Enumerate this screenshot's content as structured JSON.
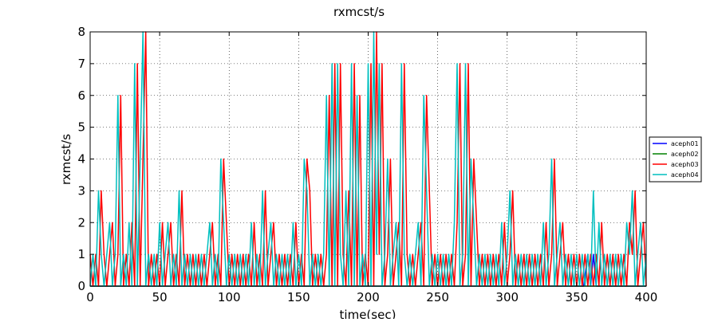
{
  "chart_data": {
    "type": "line",
    "title": "rxmcst/s",
    "xlabel": "time(sec)",
    "ylabel": "rxmcst/s",
    "xlim": [
      0,
      400
    ],
    "ylim": [
      0,
      8
    ],
    "xticks": [
      "0",
      "50",
      "100",
      "150",
      "200",
      "250",
      "300",
      "350",
      "400"
    ],
    "yticks": [
      "0",
      "1",
      "2",
      "3",
      "4",
      "5",
      "6",
      "7",
      "8"
    ],
    "grid": true,
    "legend_position": "right",
    "series": [
      {
        "name": "aceph01",
        "color": "#0000ff",
        "x": [
          0,
          10,
          20,
          30,
          40,
          50,
          60,
          70,
          80,
          90,
          100,
          110,
          120,
          130,
          140,
          150,
          160,
          170,
          180,
          190,
          200,
          210,
          220,
          230,
          240,
          250,
          260,
          270,
          280,
          290,
          300,
          310,
          320,
          330,
          340,
          350,
          355,
          358,
          360,
          362,
          364,
          366,
          400
        ],
        "y": [
          0,
          0,
          0,
          0,
          0,
          0,
          0,
          0,
          0,
          0,
          0,
          0,
          0,
          0,
          0,
          0,
          0,
          0,
          0,
          0,
          0,
          0,
          0,
          0,
          0,
          0,
          0,
          0,
          0,
          0,
          0,
          0,
          0,
          0,
          0,
          0,
          0,
          1,
          0,
          1,
          0,
          0,
          0
        ]
      },
      {
        "name": "aceph02",
        "color": "#008000",
        "x": [
          0,
          10,
          20,
          30,
          40,
          50,
          60,
          70,
          80,
          90,
          100,
          110,
          120,
          130,
          140,
          150,
          160,
          170,
          180,
          190,
          200,
          210,
          220,
          230,
          240,
          250,
          260,
          270,
          280,
          290,
          300,
          310,
          320,
          330,
          340,
          350,
          360,
          370,
          380,
          390,
          400
        ],
        "y": [
          0,
          0,
          0,
          0,
          0,
          0,
          0,
          0,
          0,
          0,
          0,
          0,
          0,
          0,
          0,
          0,
          0,
          0,
          0,
          0,
          0,
          0,
          0,
          0,
          0,
          0,
          0,
          0,
          0,
          0,
          0,
          0,
          0,
          0,
          0,
          0,
          0,
          0,
          0,
          0,
          0
        ]
      },
      {
        "name": "aceph03",
        "color": "#ff0000",
        "x": [
          0,
          2,
          4,
          6,
          8,
          10,
          12,
          14,
          16,
          18,
          20,
          22,
          24,
          26,
          28,
          30,
          32,
          34,
          36,
          38,
          40,
          42,
          44,
          46,
          48,
          50,
          52,
          54,
          56,
          58,
          60,
          62,
          64,
          66,
          68,
          70,
          72,
          74,
          76,
          78,
          80,
          82,
          84,
          86,
          88,
          90,
          92,
          94,
          96,
          98,
          100,
          102,
          104,
          106,
          108,
          110,
          112,
          114,
          116,
          118,
          120,
          122,
          124,
          126,
          128,
          130,
          132,
          134,
          136,
          138,
          140,
          142,
          144,
          146,
          148,
          150,
          152,
          154,
          156,
          158,
          160,
          162,
          164,
          166,
          168,
          170,
          172,
          174,
          176,
          178,
          180,
          182,
          184,
          186,
          188,
          190,
          192,
          194,
          196,
          198,
          200,
          202,
          204,
          206,
          208,
          210,
          212,
          214,
          216,
          218,
          220,
          222,
          224,
          226,
          228,
          230,
          232,
          234,
          236,
          238,
          240,
          242,
          244,
          246,
          248,
          250,
          252,
          254,
          256,
          258,
          260,
          262,
          264,
          266,
          268,
          270,
          272,
          274,
          276,
          278,
          280,
          282,
          284,
          286,
          288,
          290,
          292,
          294,
          296,
          298,
          300,
          302,
          304,
          306,
          308,
          310,
          312,
          314,
          316,
          318,
          320,
          322,
          324,
          326,
          328,
          330,
          332,
          334,
          336,
          338,
          340,
          342,
          344,
          346,
          348,
          350,
          352,
          354,
          356,
          358,
          360,
          362,
          364,
          366,
          368,
          370,
          372,
          374,
          376,
          378,
          380,
          382,
          384,
          386,
          388,
          390,
          392,
          394,
          396,
          398,
          400
        ],
        "y": [
          1,
          0,
          1,
          0,
          3,
          1,
          0,
          1,
          2,
          0,
          1,
          6,
          0,
          1,
          0,
          2,
          0,
          7,
          0,
          4,
          8,
          0,
          1,
          0,
          1,
          0,
          2,
          0,
          1,
          2,
          0,
          1,
          0,
          3,
          0,
          1,
          0,
          1,
          0,
          1,
          0,
          1,
          0,
          1,
          2,
          0,
          1,
          0,
          4,
          2,
          0,
          1,
          0,
          1,
          0,
          1,
          0,
          1,
          0,
          2,
          0,
          1,
          0,
          3,
          0,
          1,
          2,
          0,
          1,
          0,
          1,
          0,
          1,
          0,
          2,
          0,
          1,
          0,
          4,
          3,
          0,
          1,
          0,
          1,
          0,
          1,
          6,
          0,
          7,
          0,
          7,
          1,
          0,
          3,
          0,
          7,
          0,
          6,
          0,
          1,
          0,
          7,
          0,
          8,
          1,
          7,
          0,
          1,
          4,
          0,
          1,
          2,
          0,
          7,
          1,
          0,
          1,
          0,
          1,
          2,
          0,
          6,
          3,
          0,
          1,
          0,
          1,
          0,
          1,
          0,
          1,
          0,
          2,
          7,
          0,
          1,
          7,
          0,
          4,
          2,
          0,
          1,
          0,
          1,
          0,
          1,
          0,
          1,
          0,
          2,
          0,
          1,
          3,
          0,
          1,
          0,
          1,
          0,
          1,
          0,
          1,
          0,
          1,
          0,
          2,
          0,
          1,
          4,
          0,
          1,
          2,
          0,
          1,
          0,
          1,
          0,
          1,
          0,
          1,
          0,
          1,
          0,
          1,
          0,
          2,
          0,
          1,
          0,
          1,
          0,
          1,
          0,
          1,
          0,
          2,
          1,
          3,
          0,
          1,
          2,
          0
        ]
      },
      {
        "name": "aceph04",
        "color": "#00bfbf",
        "x": [
          0,
          2,
          4,
          6,
          8,
          10,
          12,
          14,
          16,
          18,
          20,
          22,
          24,
          26,
          28,
          30,
          32,
          34,
          36,
          38,
          40,
          42,
          44,
          46,
          48,
          50,
          52,
          54,
          56,
          58,
          60,
          62,
          64,
          66,
          68,
          70,
          72,
          74,
          76,
          78,
          80,
          82,
          84,
          86,
          88,
          90,
          92,
          94,
          96,
          98,
          100,
          102,
          104,
          106,
          108,
          110,
          112,
          114,
          116,
          118,
          120,
          122,
          124,
          126,
          128,
          130,
          132,
          134,
          136,
          138,
          140,
          142,
          144,
          146,
          148,
          150,
          152,
          154,
          156,
          158,
          160,
          162,
          164,
          166,
          168,
          170,
          172,
          174,
          176,
          178,
          180,
          182,
          184,
          186,
          188,
          190,
          192,
          194,
          196,
          198,
          200,
          202,
          204,
          206,
          208,
          210,
          212,
          214,
          216,
          218,
          220,
          222,
          224,
          226,
          228,
          230,
          232,
          234,
          236,
          238,
          240,
          242,
          244,
          246,
          248,
          250,
          252,
          254,
          256,
          258,
          260,
          262,
          264,
          266,
          268,
          270,
          272,
          274,
          276,
          278,
          280,
          282,
          284,
          286,
          288,
          290,
          292,
          294,
          296,
          298,
          300,
          302,
          304,
          306,
          308,
          310,
          312,
          314,
          316,
          318,
          320,
          322,
          324,
          326,
          328,
          330,
          332,
          334,
          336,
          338,
          340,
          342,
          344,
          346,
          348,
          350,
          352,
          354,
          356,
          358,
          360,
          362,
          364,
          366,
          368,
          370,
          372,
          374,
          376,
          378,
          380,
          382,
          384,
          386,
          388,
          390,
          392,
          394,
          396,
          398,
          400
        ],
        "y": [
          0,
          1,
          0,
          3,
          1,
          0,
          1,
          2,
          0,
          1,
          6,
          0,
          1,
          0,
          2,
          0,
          7,
          0,
          4,
          8,
          0,
          1,
          0,
          1,
          0,
          2,
          0,
          1,
          2,
          0,
          1,
          0,
          3,
          0,
          1,
          0,
          1,
          0,
          1,
          0,
          1,
          0,
          1,
          2,
          0,
          1,
          0,
          4,
          2,
          0,
          1,
          0,
          1,
          0,
          1,
          0,
          1,
          0,
          2,
          0,
          1,
          0,
          3,
          0,
          1,
          2,
          0,
          1,
          0,
          1,
          0,
          1,
          0,
          2,
          0,
          1,
          0,
          4,
          3,
          0,
          1,
          0,
          1,
          0,
          1,
          6,
          0,
          7,
          0,
          7,
          1,
          0,
          3,
          0,
          7,
          0,
          6,
          0,
          1,
          0,
          7,
          0,
          8,
          1,
          7,
          0,
          1,
          4,
          0,
          1,
          2,
          0,
          7,
          1,
          0,
          1,
          0,
          1,
          2,
          0,
          6,
          3,
          0,
          1,
          0,
          1,
          0,
          1,
          0,
          1,
          0,
          2,
          7,
          0,
          1,
          7,
          0,
          4,
          2,
          0,
          1,
          0,
          1,
          0,
          1,
          0,
          1,
          0,
          2,
          0,
          1,
          3,
          0,
          1,
          0,
          1,
          0,
          1,
          0,
          1,
          0,
          1,
          0,
          2,
          0,
          1,
          4,
          0,
          1,
          2,
          0,
          1,
          0,
          1,
          0,
          1,
          0,
          1,
          0,
          1,
          0,
          3,
          0,
          2,
          0,
          1,
          0,
          1,
          0,
          1,
          0,
          1,
          0,
          2,
          1,
          3,
          0,
          1,
          2,
          0,
          1
        ]
      }
    ]
  }
}
